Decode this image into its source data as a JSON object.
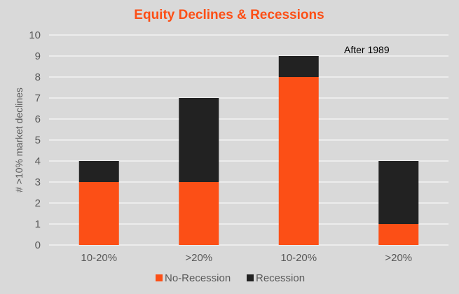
{
  "chart_data": {
    "type": "bar",
    "stacked": true,
    "title": "Equity Declines & Recessions",
    "ylabel": "# >10% market declines",
    "xlabel": "",
    "ylim": [
      0,
      10
    ],
    "yticks": [
      0,
      1,
      2,
      3,
      4,
      5,
      6,
      7,
      8,
      9,
      10
    ],
    "categories": [
      "10-20%",
      ">20%",
      "10-20%",
      ">20%"
    ],
    "series": [
      {
        "name": "No-Recession",
        "values": [
          3,
          3,
          8,
          1
        ],
        "color": "#fc4f16"
      },
      {
        "name": "Recession",
        "values": [
          1,
          4,
          1,
          3
        ],
        "color": "#222222"
      }
    ],
    "annotation": "After 1989",
    "grid": true,
    "legend_position": "bottom",
    "colors": {
      "background": "#d9d9d9",
      "title": "#fc4f16",
      "grid": "#ffffff",
      "axis_text": "#595959"
    }
  }
}
